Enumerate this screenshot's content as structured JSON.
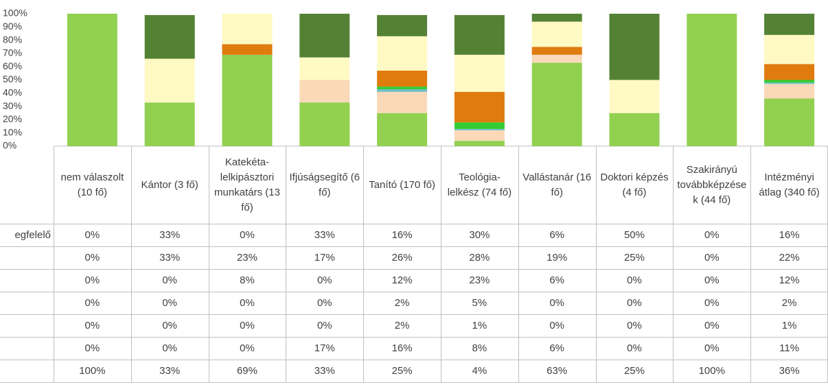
{
  "chart_data": {
    "type": "stacked_bar_100",
    "categories": [
      "nem válaszolt (10 fő)",
      "Kántor (3 fő)",
      "Katekéta-lelkipásztori munkatárs (13 fő)",
      "Ifjúságsegítő (6 fő)",
      "Tanító (170 fő)",
      "Teológia-lelkész (74 fő)",
      "Vallástanár (16 fő)",
      "Doktori képzés (4 fő)",
      "Szakirányú továbbképzések (44 fő)",
      "Intézményi átlag (340 fő)"
    ],
    "series": [
      {
        "name": "egfelelő",
        "color": "#548235",
        "values": [
          0,
          33,
          0,
          33,
          16,
          30,
          6,
          50,
          0,
          16
        ],
        "value_labels": [
          "0%",
          "33%",
          "0%",
          "33%",
          "16%",
          "30%",
          "6%",
          "50%",
          "0%",
          "16%"
        ]
      },
      {
        "name": null,
        "color": "#fff9c4",
        "values": [
          0,
          33,
          23,
          17,
          26,
          28,
          19,
          25,
          0,
          22
        ],
        "value_labels": [
          "0%",
          "33%",
          "23%",
          "17%",
          "26%",
          "28%",
          "19%",
          "25%",
          "0%",
          "22%"
        ]
      },
      {
        "name": null,
        "color": "#e07b0e",
        "values": [
          0,
          0,
          8,
          0,
          12,
          23,
          6,
          0,
          0,
          12
        ],
        "value_labels": [
          "0%",
          "0%",
          "8%",
          "0%",
          "12%",
          "23%",
          "6%",
          "0%",
          "0%",
          "12%"
        ]
      },
      {
        "name": null,
        "color": "#33cc33",
        "values": [
          0,
          0,
          0,
          0,
          2,
          5,
          0,
          0,
          0,
          2
        ],
        "value_labels": [
          "0%",
          "0%",
          "0%",
          "0%",
          "2%",
          "5%",
          "0%",
          "0%",
          "0%",
          "2%"
        ]
      },
      {
        "name": null,
        "color": "#70c0c8",
        "values": [
          0,
          0,
          0,
          0,
          2,
          1,
          0,
          0,
          0,
          1
        ],
        "value_labels": [
          "0%",
          "0%",
          "0%",
          "0%",
          "2%",
          "1%",
          "0%",
          "0%",
          "0%",
          "1%"
        ]
      },
      {
        "name": null,
        "color": "#f9d9b8",
        "values": [
          0,
          0,
          0,
          17,
          16,
          8,
          6,
          0,
          0,
          11
        ],
        "value_labels": [
          "0%",
          "0%",
          "0%",
          "17%",
          "16%",
          "8%",
          "6%",
          "0%",
          "0%",
          "11%"
        ]
      },
      {
        "name": null,
        "color": "#92d050",
        "values": [
          100,
          33,
          69,
          33,
          25,
          4,
          63,
          25,
          100,
          36
        ],
        "value_labels": [
          "100%",
          "33%",
          "69%",
          "33%",
          "25%",
          "4%",
          "63%",
          "25%",
          "100%",
          "36%"
        ]
      }
    ],
    "ylim": [
      0,
      100
    ],
    "yticks": [
      {
        "value": 0,
        "label": "0%"
      },
      {
        "value": 10,
        "label": "10%"
      },
      {
        "value": 20,
        "label": "20%"
      },
      {
        "value": 30,
        "label": "30%"
      },
      {
        "value": 40,
        "label": "40%"
      },
      {
        "value": 50,
        "label": "50%"
      },
      {
        "value": 60,
        "label": "60%"
      },
      {
        "value": 70,
        "label": "70%"
      },
      {
        "value": 80,
        "label": "80%"
      },
      {
        "value": 90,
        "label": "90%"
      },
      {
        "value": 100,
        "label": "100%"
      }
    ]
  }
}
